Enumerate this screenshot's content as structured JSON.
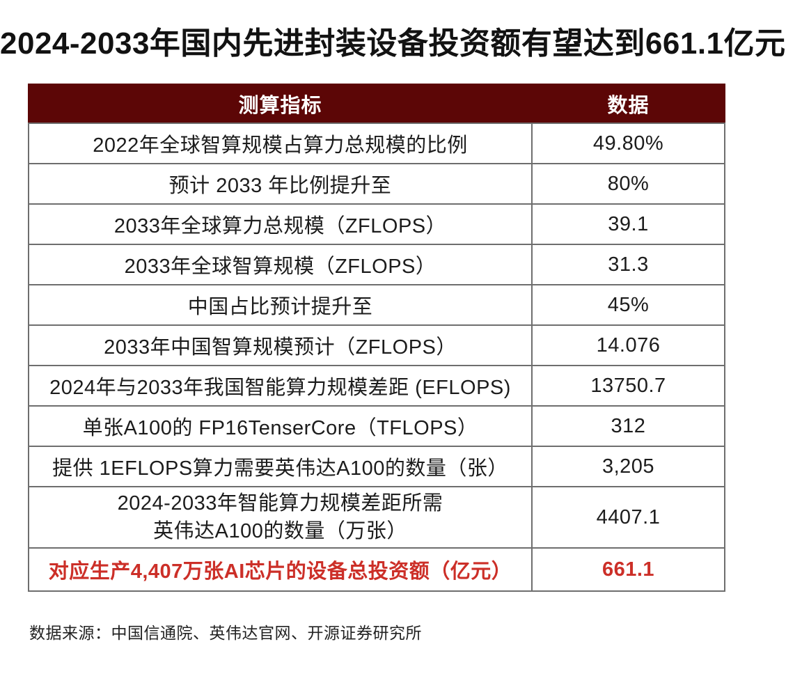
{
  "page": {
    "title": "2024-2033年国内先进封装设备投资额有望达到661.1亿元",
    "source": "数据来源：中国信通院、英伟达官网、开源证券研究所"
  },
  "colors": {
    "header_bg": "#5c0606",
    "header_text": "#ffffff",
    "highlight_text": "#cc2f28",
    "border": "#6e6e6e",
    "title_text": "#121212"
  },
  "chart_data": {
    "type": "table",
    "title": "2024-2033年国内先进封装设备投资额有望达到661.1亿元",
    "columns": [
      "测算指标",
      "数据"
    ],
    "rows": [
      [
        "2022年全球智算规模占算力总规模的比例",
        "49.80%"
      ],
      [
        "预计 2033 年比例提升至",
        "80%"
      ],
      [
        "2033年全球算力总规模（ZFLOPS）",
        "39.1"
      ],
      [
        "2033年全球智算规模（ZFLOPS）",
        "31.3"
      ],
      [
        "中国占比预计提升至",
        "45%"
      ],
      [
        "2033年中国智算规模预计（ZFLOPS）",
        "14.076"
      ],
      [
        "2024年与2033年我国智能算力规模差距 (EFLOPS)",
        "13750.7"
      ],
      [
        "单张A100的 FP16TenserCore（TFLOPS）",
        "312"
      ],
      [
        "提供 1EFLOPS算力需要英伟达A100的数量（张）",
        "3,205"
      ],
      [
        "2024-2033年智能算力规模差距所需\n英伟达A100的数量（万张）",
        "4407.1"
      ],
      [
        "对应生产4,407万张AI芯片的设备总投资额（亿元）",
        "661.1"
      ]
    ],
    "highlight_row_index": 10,
    "source": "数据来源：中国信通院、英伟达官网、开源证券研究所",
    "legend_position": "none",
    "grid": true
  }
}
